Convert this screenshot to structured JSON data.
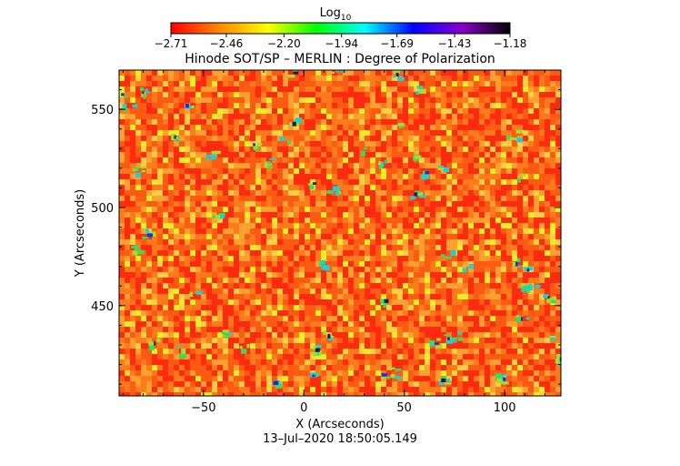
{
  "chart_data": {
    "type": "heatmap",
    "title": "Hinode SOT/SP – MERLIN : Degree of Polarization",
    "colorbar": {
      "title_main": "Log",
      "title_sub": "10",
      "tick_labels": [
        "−2.71",
        "−2.46",
        "−2.20",
        "−1.94",
        "−1.69",
        "−1.43",
        "−1.18"
      ],
      "tick_values": [
        -2.71,
        -2.46,
        -2.2,
        -1.94,
        -1.69,
        -1.43,
        -1.18
      ],
      "range": [
        -2.71,
        -1.18
      ],
      "colors": [
        "#ff0000",
        "#ff8800",
        "#ffff00",
        "#00ff00",
        "#00ffff",
        "#0000ff",
        "#8800cc",
        "#000000"
      ]
    },
    "xlabel": "X (Arcseconds)",
    "ylabel": "Y (Arcseconds)",
    "xlim": [
      -92,
      128
    ],
    "ylim": [
      404,
      570
    ],
    "xticks": [
      -50,
      0,
      50,
      100
    ],
    "xtick_labels": [
      "−50",
      "0",
      "50",
      "100"
    ],
    "yticks": [
      450,
      500,
      550
    ],
    "ytick_labels": [
      "450",
      "500",
      "550"
    ],
    "background_colors": [
      "#ff2a10",
      "#ff5a14",
      "#ff7a1a",
      "#ffa030",
      "#ffd040"
    ],
    "highlight_colors": [
      "#e8f020",
      "#a0e030",
      "#30e060",
      "#20d0d0",
      "#1030e0",
      "#102070"
    ],
    "grid": false,
    "legend": "none",
    "timestamp": "13–Jul–2020 18:50:05.149"
  }
}
